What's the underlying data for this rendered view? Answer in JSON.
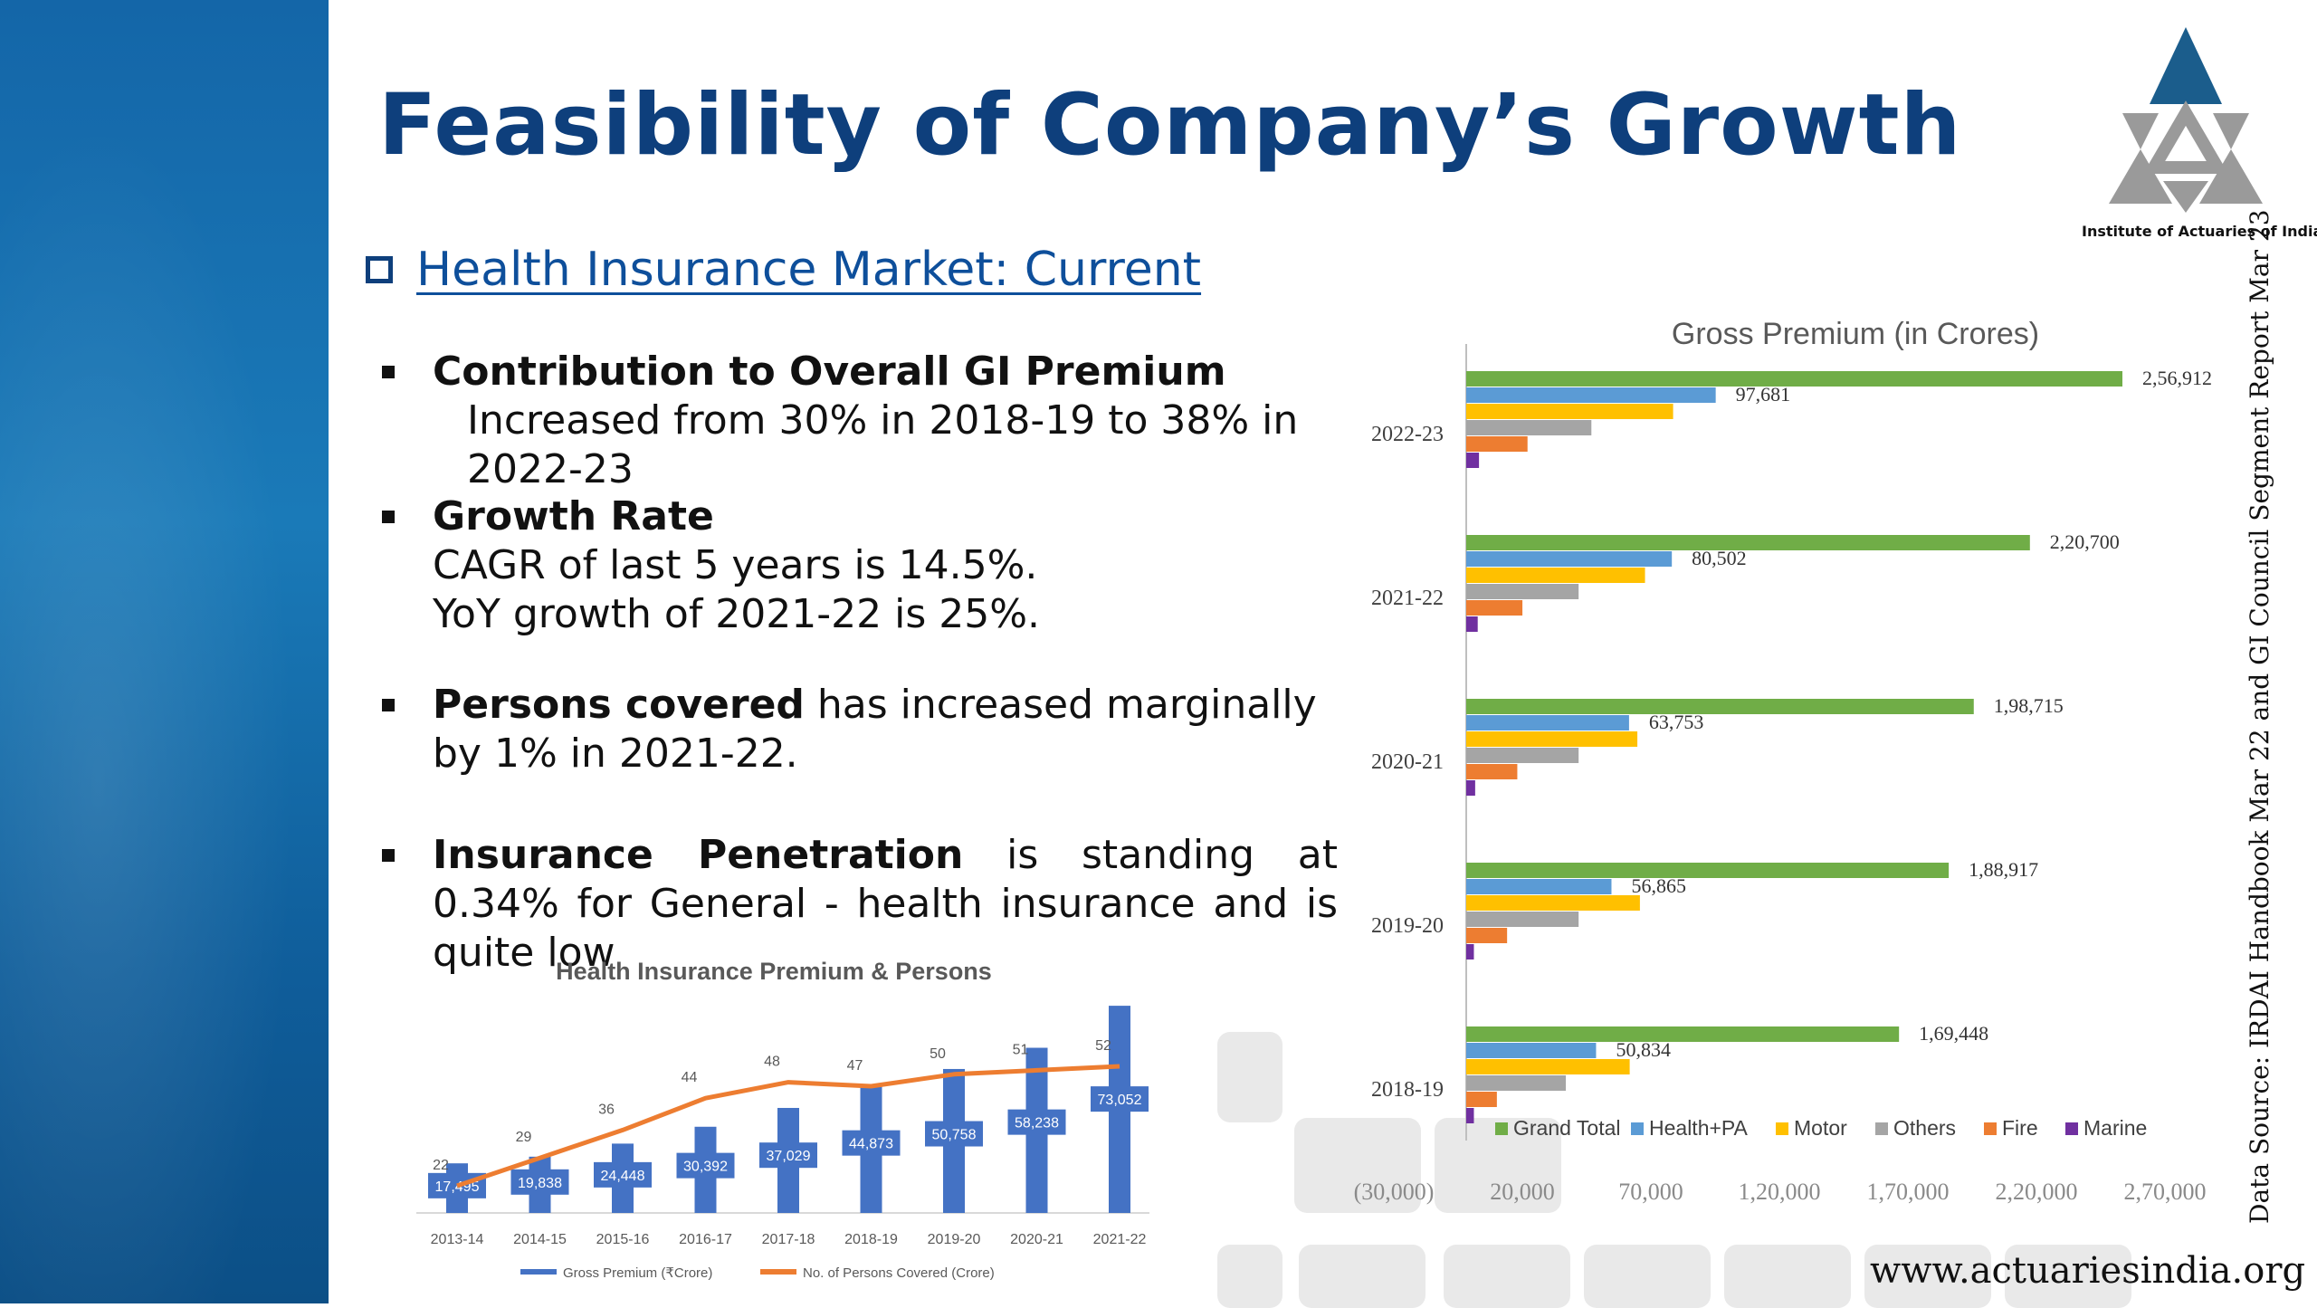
{
  "slide": {
    "title": "Feasibility of Company’s Growth",
    "subheading": "Health Insurance Market: Current",
    "bullets": [
      {
        "head": "Contribution to Overall GI Premium",
        "lines": [
          "Increased from 30% in 2018-19 to 38% in 2022-23"
        ]
      },
      {
        "head": "Growth Rate",
        "lines": [
          "CAGR of last 5 years is 14.5%.",
          "YoY growth of 2021-22 is 25%."
        ]
      },
      {
        "head": "Persons covered",
        "tail": " has increased marginally by 1% in 2021-22."
      },
      {
        "head": "Insurance Penetration",
        "tail": " is standing at 0.34% for General - health insurance and is quite low"
      }
    ],
    "logo_caption": "Institute of Actuaries of India",
    "source_note": "Data Source: IRDAI Handbook Mar 22 and GI Council Segment Report Mar 23",
    "website": "www.actuariesindia.org"
  },
  "colors": {
    "title": "#0e3f7c",
    "link": "#0e4f9b",
    "grand_total": "#70ad47",
    "health_pa": "#5b9bd5",
    "motor": "#ffc000",
    "others": "#a5a5a5",
    "fire": "#ed7d31",
    "marine": "#7030a0",
    "premium_bar": "#4472c4",
    "persons_line": "#ed7d31"
  },
  "chart_data": [
    {
      "type": "bar",
      "orientation": "horizontal",
      "title": "Gross Premium (in Crores)",
      "categories": [
        "2022-23",
        "2021-22",
        "2020-21",
        "2019-20",
        "2018-19"
      ],
      "series": [
        {
          "name": "Grand Total",
          "values": [
            256912,
            220700,
            198715,
            188917,
            169448
          ],
          "labels": [
            "2,56,912",
            "2,20,700",
            "1,98,715",
            "1,88,917",
            "1,69,448"
          ]
        },
        {
          "name": "Health+PA",
          "values": [
            97681,
            80502,
            63753,
            56865,
            50834
          ],
          "labels": [
            "97,681",
            "80,502",
            "63,753",
            "56,865",
            "50,834"
          ]
        },
        {
          "name": "Motor",
          "values": [
            81000,
            70000,
            67000,
            68000,
            64000
          ]
        },
        {
          "name": "Others",
          "values": [
            49000,
            44000,
            44000,
            44000,
            39000
          ]
        },
        {
          "name": "Fire",
          "values": [
            24000,
            22000,
            20000,
            16000,
            12000
          ]
        },
        {
          "name": "Marine",
          "values": [
            5000,
            4500,
            3500,
            3000,
            3000
          ]
        }
      ],
      "xticks": [
        "(30,000)",
        "20,000",
        "70,000",
        "1,20,000",
        "1,70,000",
        "2,20,000",
        "2,70,000"
      ],
      "xlim": [
        -30000,
        270000
      ],
      "legend": "bottom"
    },
    {
      "type": "bar",
      "title": "Health Insurance Premium & Persons",
      "categories": [
        "2013-14",
        "2014-15",
        "2015-16",
        "2016-17",
        "2017-18",
        "2018-19",
        "2019-20",
        "2020-21",
        "2021-22"
      ],
      "series": [
        {
          "name": "Gross Premium (₹Crore)",
          "values": [
            17495,
            19838,
            24448,
            30392,
            37029,
            44873,
            50758,
            58238,
            73052
          ],
          "labels": [
            "17,495",
            "19,838",
            "24,448",
            "30,392",
            "37,029",
            "44,873",
            "50,758",
            "58,238",
            "73,052"
          ]
        },
        {
          "name": "No. of Persons Covered (Crore)",
          "type": "line",
          "values": [
            22,
            29,
            36,
            44,
            48,
            47,
            50,
            51,
            52
          ]
        }
      ],
      "legend": "bottom"
    }
  ]
}
